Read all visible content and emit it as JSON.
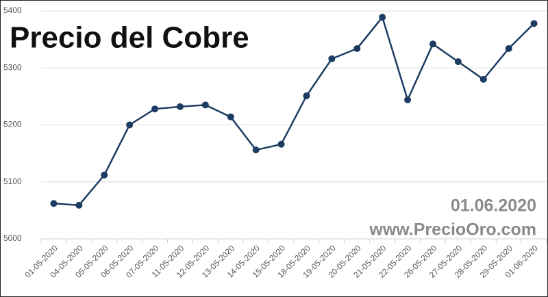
{
  "chart_data": {
    "type": "line",
    "title": "Precio del Cobre",
    "annotations": [
      "01.06.2020",
      "www.PrecioOro.com"
    ],
    "categories": [
      "01-05-2020",
      "04-05-2020",
      "05-05-2020",
      "06-05-2020",
      "07-05-2020",
      "11-05-2020",
      "12-05-2020",
      "13-05-2020",
      "14-05-2020",
      "15-05-2020",
      "18-05-2020",
      "19-05-2020",
      "20-05-2020",
      "21-05-2020",
      "22-05-2020",
      "26-05-2020",
      "27-05-2020",
      "28-05-2020",
      "29-05-2020",
      "01-06-2020"
    ],
    "values": [
      5062,
      5059,
      5112,
      5200,
      5228,
      5232,
      5235,
      5214,
      5156,
      5166,
      5251,
      5316,
      5334,
      5389,
      5244,
      5342,
      5311,
      5280,
      5334,
      5378
    ],
    "color": "#1d3c63",
    "ylim": [
      5000,
      5400
    ],
    "yticks": [
      5000,
      5100,
      5200,
      5300,
      5400
    ],
    "grid": true
  }
}
